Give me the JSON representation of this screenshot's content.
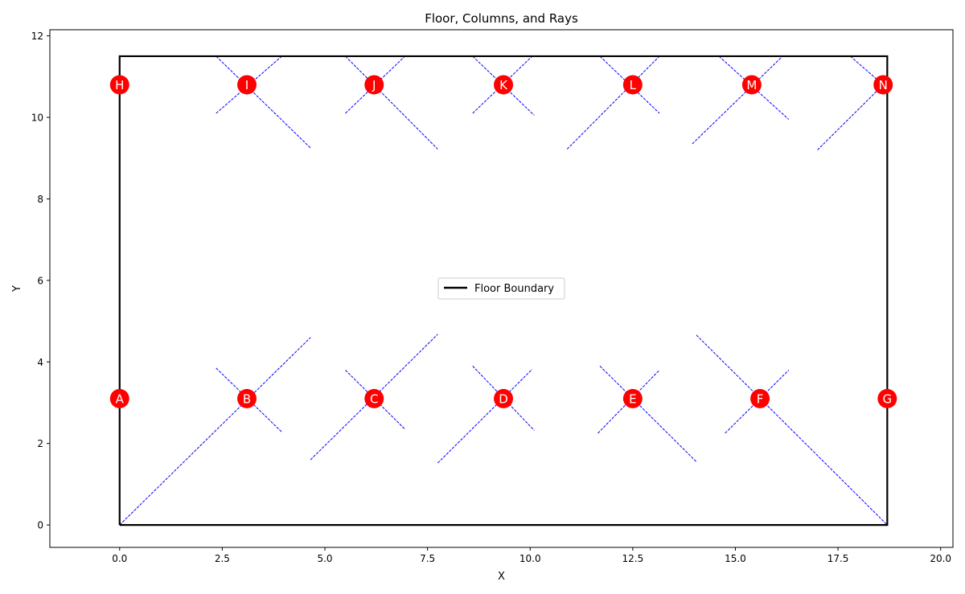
{
  "chart_data": {
    "type": "scatter",
    "title": "Floor, Columns, and Rays",
    "xlabel": "X",
    "ylabel": "Y",
    "xlim": [
      -1.7,
      20.3
    ],
    "ylim": [
      -0.55,
      12.15
    ],
    "xticks": [
      0.0,
      2.5,
      5.0,
      7.5,
      10.0,
      12.5,
      15.0,
      17.5,
      20.0
    ],
    "xtick_labels": [
      "0.0",
      "2.5",
      "5.0",
      "7.5",
      "10.0",
      "12.5",
      "15.0",
      "17.5",
      "20.0"
    ],
    "yticks": [
      0,
      2,
      4,
      6,
      8,
      10,
      12
    ],
    "ytick_labels": [
      "0",
      "2",
      "4",
      "6",
      "8",
      "10",
      "12"
    ],
    "grid": false,
    "legend": {
      "placement": "center",
      "entries": [
        "Floor Boundary"
      ]
    },
    "floor": {
      "name": "Floor Boundary",
      "x": [
        0,
        18.7,
        18.7,
        0,
        0
      ],
      "y": [
        0,
        0,
        11.5,
        11.5,
        0
      ],
      "color": "#000000"
    },
    "columns": [
      {
        "label": "A",
        "x": 0.0,
        "y": 3.1
      },
      {
        "label": "B",
        "x": 3.1,
        "y": 3.1
      },
      {
        "label": "C",
        "x": 6.2,
        "y": 3.1
      },
      {
        "label": "D",
        "x": 9.35,
        "y": 3.1
      },
      {
        "label": "E",
        "x": 12.5,
        "y": 3.1
      },
      {
        "label": "F",
        "x": 15.6,
        "y": 3.1
      },
      {
        "label": "G",
        "x": 18.7,
        "y": 3.1
      },
      {
        "label": "H",
        "x": 0.0,
        "y": 10.8
      },
      {
        "label": "I",
        "x": 3.1,
        "y": 10.8
      },
      {
        "label": "J",
        "x": 6.2,
        "y": 10.8
      },
      {
        "label": "K",
        "x": 9.35,
        "y": 10.8
      },
      {
        "label": "L",
        "x": 12.5,
        "y": 10.8
      },
      {
        "label": "M",
        "x": 15.4,
        "y": 10.8
      },
      {
        "label": "N",
        "x": 18.6,
        "y": 10.8
      }
    ],
    "column_color": "#ff0000",
    "ray_color": "#0000ff",
    "rays": [
      [
        0.0,
        0.0,
        4.65,
        4.6
      ],
      [
        2.35,
        3.85,
        3.95,
        2.28
      ],
      [
        4.65,
        1.6,
        7.75,
        4.68
      ],
      [
        5.5,
        3.8,
        6.95,
        2.35
      ],
      [
        7.75,
        1.52,
        10.05,
        3.82
      ],
      [
        8.6,
        3.9,
        10.1,
        2.32
      ],
      [
        11.65,
        2.25,
        13.15,
        3.8
      ],
      [
        11.7,
        3.9,
        14.05,
        1.55
      ],
      [
        14.05,
        4.66,
        18.7,
        0.0
      ],
      [
        14.75,
        2.25,
        16.3,
        3.8
      ],
      [
        2.35,
        10.1,
        3.95,
        11.5
      ],
      [
        2.35,
        11.5,
        4.65,
        9.25
      ],
      [
        5.5,
        10.1,
        6.95,
        11.5
      ],
      [
        5.5,
        11.5,
        7.75,
        9.22
      ],
      [
        8.6,
        10.1,
        10.05,
        11.5
      ],
      [
        8.6,
        11.5,
        10.1,
        10.05
      ],
      [
        10.9,
        9.22,
        13.15,
        11.5
      ],
      [
        11.7,
        11.5,
        13.15,
        10.1
      ],
      [
        13.95,
        9.35,
        16.15,
        11.5
      ],
      [
        14.6,
        11.5,
        16.3,
        9.95
      ],
      [
        17.0,
        9.2,
        18.6,
        10.8
      ],
      [
        17.8,
        11.5,
        18.6,
        10.8
      ]
    ]
  }
}
